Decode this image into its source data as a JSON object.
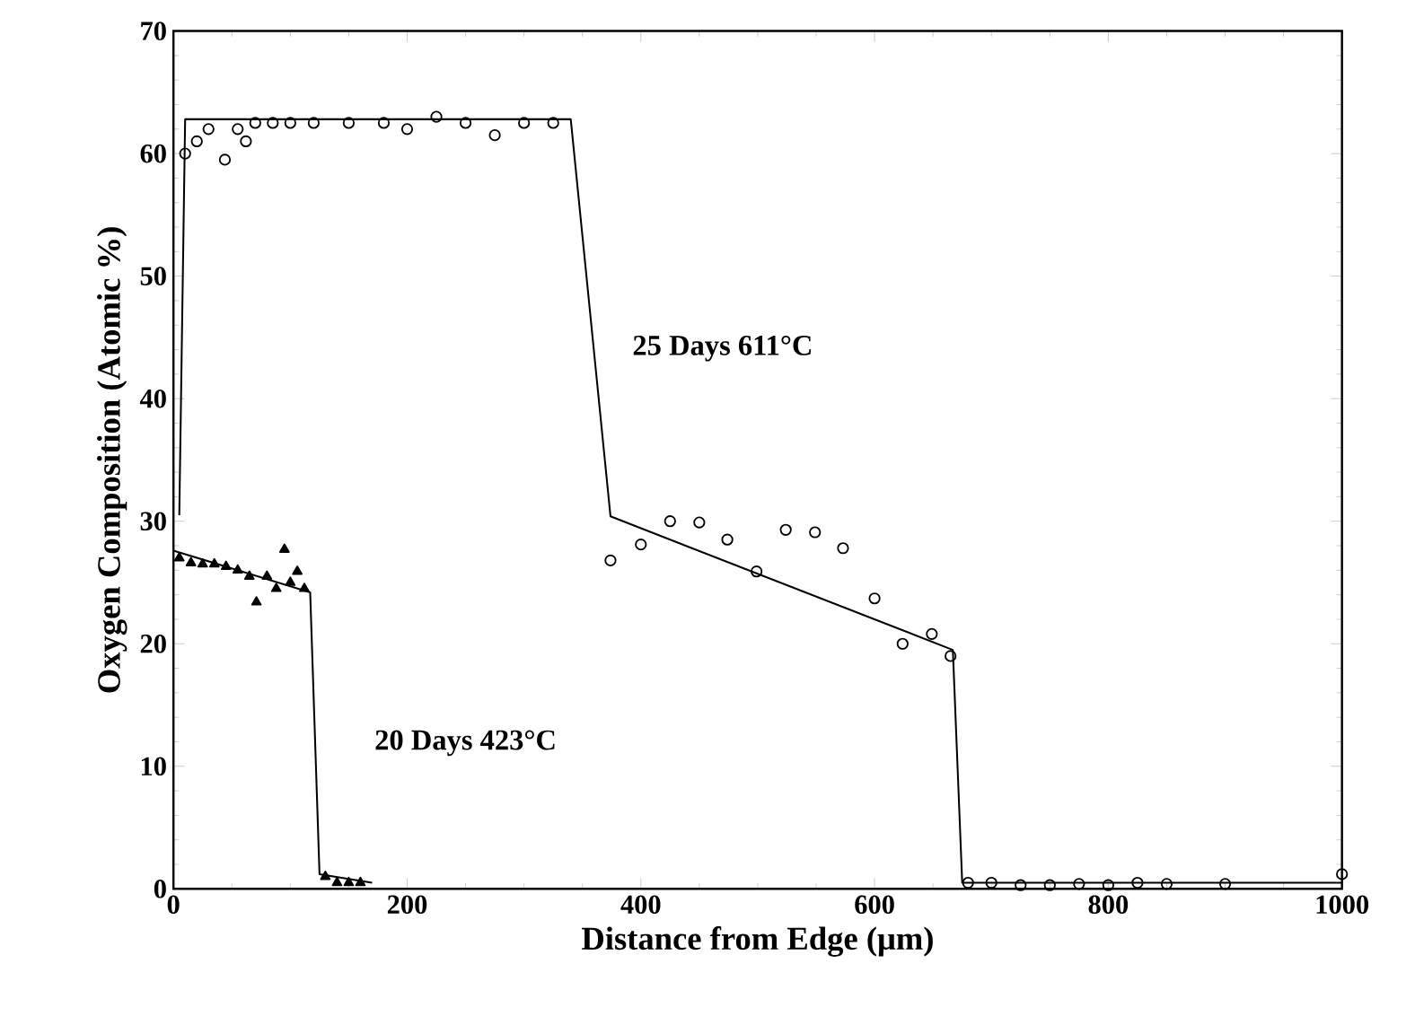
{
  "chart_data": {
    "type": "scatter",
    "xlabel": "Distance from Edge (μm)",
    "ylabel": "Oxygen Composition (Atomic %)",
    "xlim": [
      0,
      1000
    ],
    "ylim": [
      0,
      70
    ],
    "xticks": [
      0,
      200,
      400,
      600,
      800,
      1000
    ],
    "yticks": [
      0,
      10,
      20,
      30,
      40,
      50,
      60,
      70
    ],
    "grid": false,
    "series": [
      {
        "type": "line",
        "color": "#000000",
        "marker": "none",
        "x": [
          5,
          10,
          340,
          374,
          667,
          675,
          1000
        ],
        "values": [
          30.5,
          62.8,
          62.8,
          30.4,
          19.5,
          0.5,
          0.5
        ]
      },
      {
        "color": "#000000",
        "marker": "circle",
        "x": [
          10,
          20,
          30,
          44,
          55,
          62,
          70,
          85,
          100,
          120,
          150,
          180,
          200,
          225,
          250,
          275,
          300,
          325,
          374,
          400,
          425,
          450,
          474,
          499,
          524,
          549,
          573,
          600,
          624,
          649,
          665,
          680,
          700,
          725,
          750,
          775,
          800,
          825,
          850,
          900,
          1000
        ],
        "values": [
          60,
          61,
          62,
          59.5,
          62,
          61,
          62.5,
          62.5,
          62.5,
          62.5,
          62.5,
          62.5,
          62,
          63,
          62.5,
          61.5,
          62.5,
          62.5,
          26.8,
          28.1,
          30,
          29.9,
          28.5,
          25.9,
          29.3,
          29.1,
          27.8,
          23.7,
          20,
          20.8,
          19,
          0.5,
          0.5,
          0.3,
          0.3,
          0.4,
          0.3,
          0.5,
          0.4,
          0.4,
          1.2
        ]
      },
      {
        "type": "line",
        "color": "#000000",
        "marker": "none",
        "x": [
          0,
          117,
          125,
          170
        ],
        "values": [
          27.6,
          24.2,
          1.2,
          0.5
        ]
      },
      {
        "color": "#000000",
        "marker": "triangle",
        "x": [
          5,
          15,
          25,
          35,
          45,
          55,
          65,
          71,
          80,
          88,
          95,
          100,
          106,
          112,
          130,
          140,
          150,
          160
        ],
        "values": [
          27,
          26.6,
          26.5,
          26.5,
          26.3,
          26,
          25.5,
          23.4,
          25.5,
          24.5,
          27.7,
          25,
          25.9,
          24.5,
          1,
          0.5,
          0.5,
          0.5
        ]
      }
    ],
    "annotations": [
      "25 Days 611°C",
      "20 Days 423°C"
    ]
  }
}
